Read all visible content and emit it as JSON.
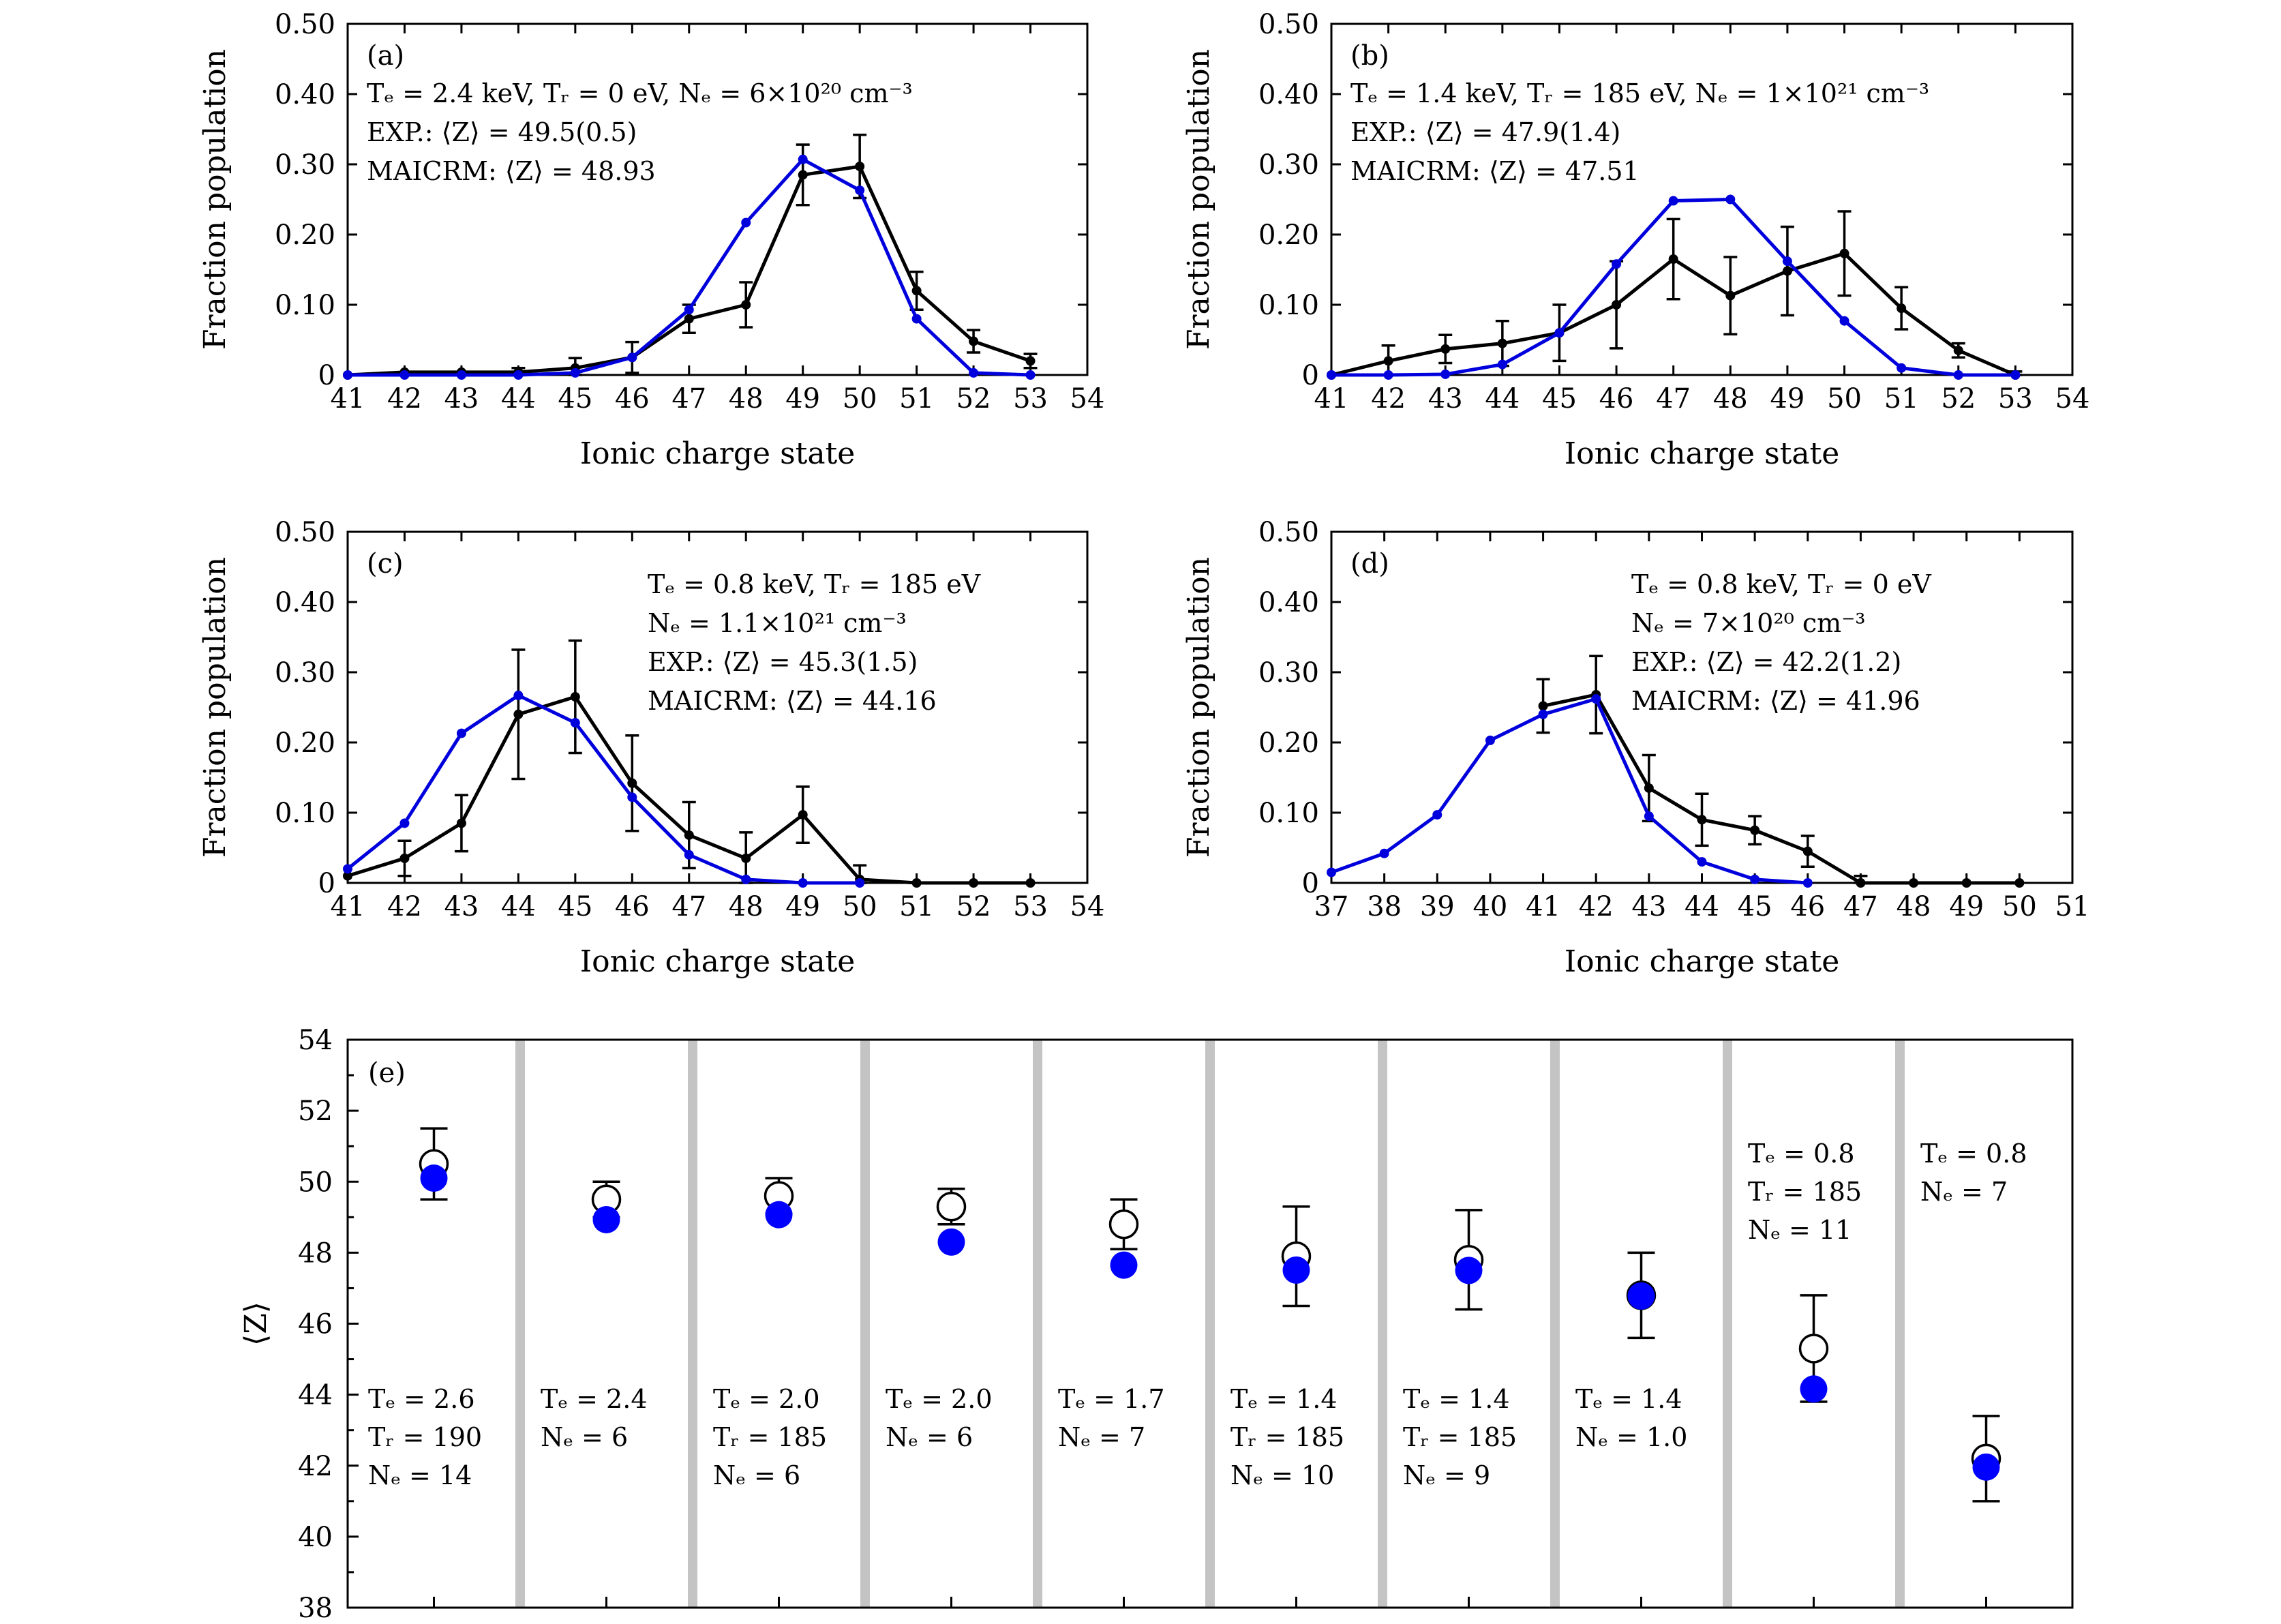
{
  "chart_data": [
    {
      "type": "line",
      "panel": "(a)",
      "xlabel": "Ionic charge state",
      "ylabel": "Fraction population",
      "xlim": [
        41,
        54
      ],
      "ylim": [
        0,
        0.5
      ],
      "xticks": [
        41,
        42,
        43,
        44,
        45,
        46,
        47,
        48,
        49,
        50,
        51,
        52,
        53,
        54
      ],
      "yticks": [
        "0",
        "0.10",
        "0.20",
        "0.30",
        "0.40",
        "0.50"
      ],
      "annotations": [
        "Tₑ = 2.4 keV, Tᵣ = 0 eV, Nₑ = 6×10²⁰ cm⁻³",
        "EXP.: ⟨Z⟩ = 49.5(0.5)",
        "MAICRM: ⟨Z⟩ = 48.93"
      ],
      "annotation_pos": "top-left",
      "series": [
        {
          "name": "EXP.",
          "color": "#000000",
          "x": [
            41,
            42,
            43,
            44,
            45,
            46,
            47,
            48,
            49,
            50,
            51,
            52,
            53
          ],
          "values": [
            0.0,
            0.004,
            0.004,
            0.004,
            0.01,
            0.025,
            0.08,
            0.1,
            0.285,
            0.297,
            0.12,
            0.048,
            0.02
          ],
          "errors": [
            0,
            0,
            0,
            0.006,
            0.014,
            0.022,
            0.02,
            0.032,
            0.043,
            0.045,
            0.027,
            0.016,
            0.01
          ]
        },
        {
          "name": "MAICRM",
          "color": "#0000dd",
          "x": [
            41,
            42,
            43,
            44,
            45,
            46,
            47,
            48,
            49,
            50,
            51,
            52,
            53
          ],
          "values": [
            0.0,
            0.0,
            0.0,
            0.0,
            0.003,
            0.025,
            0.093,
            0.217,
            0.307,
            0.263,
            0.08,
            0.003,
            0.0
          ]
        }
      ]
    },
    {
      "type": "line",
      "panel": "(b)",
      "xlabel": "Ionic charge state",
      "ylabel": "Fraction population",
      "xlim": [
        41,
        54
      ],
      "ylim": [
        0,
        0.5
      ],
      "xticks": [
        41,
        42,
        43,
        44,
        45,
        46,
        47,
        48,
        49,
        50,
        51,
        52,
        53,
        54
      ],
      "yticks": [
        "0",
        "0.10",
        "0.20",
        "0.30",
        "0.40",
        "0.50"
      ],
      "annotations": [
        "Tₑ = 1.4 keV, Tᵣ = 185 eV, Nₑ = 1×10²¹ cm⁻³",
        "EXP.: ⟨Z⟩ = 47.9(1.4)",
        "MAICRM: ⟨Z⟩ = 47.51"
      ],
      "annotation_pos": "top-left",
      "series": [
        {
          "name": "EXP.",
          "color": "#000000",
          "x": [
            41,
            42,
            43,
            44,
            45,
            46,
            47,
            48,
            49,
            50,
            51,
            52,
            53
          ],
          "values": [
            0.0,
            0.02,
            0.037,
            0.045,
            0.06,
            0.1,
            0.165,
            0.113,
            0.148,
            0.173,
            0.095,
            0.035,
            0.0
          ],
          "errors": [
            0,
            0.022,
            0.02,
            0.032,
            0.04,
            0.062,
            0.057,
            0.055,
            0.063,
            0.06,
            0.03,
            0.01,
            0.005
          ]
        },
        {
          "name": "MAICRM",
          "color": "#0000dd",
          "x": [
            41,
            42,
            43,
            44,
            45,
            46,
            47,
            48,
            49,
            50,
            51,
            52,
            53
          ],
          "values": [
            0.0,
            0.0,
            0.001,
            0.015,
            0.06,
            0.158,
            0.248,
            0.25,
            0.162,
            0.077,
            0.01,
            0.0,
            0.0
          ]
        }
      ]
    },
    {
      "type": "line",
      "panel": "(c)",
      "xlabel": "Ionic charge state",
      "ylabel": "Fraction population",
      "xlim": [
        41,
        54
      ],
      "ylim": [
        0,
        0.5
      ],
      "xticks": [
        41,
        42,
        43,
        44,
        45,
        46,
        47,
        48,
        49,
        50,
        51,
        52,
        53,
        54
      ],
      "yticks": [
        "0",
        "0.10",
        "0.20",
        "0.30",
        "0.40",
        "0.50"
      ],
      "annotations": [
        "Tₑ = 0.8 keV, Tᵣ = 185 eV",
        "Nₑ = 1.1×10²¹ cm⁻³",
        "EXP.: ⟨Z⟩ = 45.3(1.5)",
        "MAICRM: ⟨Z⟩ = 44.16"
      ],
      "annotation_pos": "top-right",
      "series": [
        {
          "name": "EXP.",
          "color": "#000000",
          "x": [
            41,
            42,
            43,
            44,
            45,
            46,
            47,
            48,
            49,
            50,
            51,
            52,
            53
          ],
          "values": [
            0.01,
            0.035,
            0.085,
            0.24,
            0.265,
            0.142,
            0.068,
            0.035,
            0.097,
            0.005,
            0.0,
            0.0,
            0.0
          ],
          "errors": [
            0,
            0.025,
            0.04,
            0.092,
            0.08,
            0.068,
            0.047,
            0.037,
            0.04,
            0.02,
            0,
            0,
            0
          ]
        },
        {
          "name": "MAICRM",
          "color": "#0000dd",
          "x": [
            41,
            42,
            43,
            44,
            45,
            46,
            47,
            48,
            49,
            50
          ],
          "values": [
            0.02,
            0.085,
            0.213,
            0.267,
            0.228,
            0.122,
            0.04,
            0.005,
            0.0,
            0.0
          ]
        }
      ]
    },
    {
      "type": "line",
      "panel": "(d)",
      "xlabel": "Ionic charge state",
      "ylabel": "Fraction population",
      "xlim": [
        37,
        51
      ],
      "ylim": [
        0,
        0.5
      ],
      "xticks": [
        37,
        38,
        39,
        40,
        41,
        42,
        43,
        44,
        45,
        46,
        47,
        48,
        49,
        50,
        51
      ],
      "yticks": [
        "0",
        "0.10",
        "0.20",
        "0.30",
        "0.40",
        "0.50"
      ],
      "annotations": [
        "Tₑ = 0.8 keV, Tᵣ = 0 eV",
        "Nₑ = 7×10²⁰ cm⁻³",
        "EXP.: ⟨Z⟩ = 42.2(1.2)",
        "MAICRM: ⟨Z⟩ = 41.96"
      ],
      "annotation_pos": "top-right",
      "series": [
        {
          "name": "EXP.",
          "color": "#000000",
          "x": [
            41,
            42,
            43,
            44,
            45,
            46,
            47,
            48,
            49,
            50
          ],
          "values": [
            0.252,
            0.268,
            0.135,
            0.09,
            0.075,
            0.045,
            0.0,
            0.0,
            0.0,
            0.0
          ],
          "errors": [
            0.038,
            0.055,
            0.047,
            0.037,
            0.02,
            0.022,
            0.01,
            0,
            0,
            0
          ]
        },
        {
          "name": "MAICRM",
          "color": "#0000dd",
          "x": [
            37,
            38,
            39,
            40,
            41,
            42,
            43,
            44,
            45,
            46
          ],
          "values": [
            0.015,
            0.042,
            0.097,
            0.203,
            0.24,
            0.262,
            0.095,
            0.03,
            0.005,
            0.0
          ]
        }
      ]
    },
    {
      "type": "scatter",
      "panel": "(e)",
      "ylabel": "⟨Z⟩",
      "ylim": [
        38,
        54
      ],
      "yticks": [
        38,
        40,
        42,
        44,
        46,
        48,
        50,
        52,
        54
      ],
      "exp_color": "#ffffff",
      "model_color": "#0000ff",
      "separator_color": "#c4c4c4",
      "groups": [
        {
          "exp": 50.5,
          "err": 1.0,
          "model": 50.1,
          "label": [
            "Tₑ = 2.6",
            "Tᵣ = 190",
            "Nₑ = 14"
          ],
          "label_pos": "bottom"
        },
        {
          "exp": 49.5,
          "err": 0.5,
          "model": 48.93,
          "label": [
            "Tₑ = 2.4",
            "Nₑ = 6"
          ],
          "label_pos": "bottom"
        },
        {
          "exp": 49.6,
          "err": 0.5,
          "model": 49.07,
          "label": [
            "Tₑ = 2.0",
            "Tᵣ = 185",
            "Nₑ = 6"
          ],
          "label_pos": "bottom"
        },
        {
          "exp": 49.3,
          "err": 0.5,
          "model": 48.3,
          "label": [
            "Tₑ = 2.0",
            "Nₑ = 6"
          ],
          "label_pos": "bottom"
        },
        {
          "exp": 48.8,
          "err": 0.7,
          "model": 47.65,
          "label": [
            "Tₑ = 1.7",
            "Nₑ = 7"
          ],
          "label_pos": "bottom"
        },
        {
          "exp": 47.9,
          "err": 1.4,
          "model": 47.51,
          "label": [
            "Tₑ = 1.4",
            "Tᵣ = 185",
            "Nₑ = 10"
          ],
          "label_pos": "bottom"
        },
        {
          "exp": 47.8,
          "err": 1.4,
          "model": 47.5,
          "label": [
            "Tₑ = 1.4",
            "Tᵣ = 185",
            "Nₑ = 9"
          ],
          "label_pos": "bottom"
        },
        {
          "exp": 46.8,
          "err": 1.2,
          "model": 46.78,
          "label": [
            "Tₑ = 1.4",
            "Nₑ = 1.0"
          ],
          "label_pos": "bottom"
        },
        {
          "exp": 45.3,
          "err": 1.5,
          "model": 44.16,
          "label": [
            "Tₑ = 0.8",
            "Tᵣ = 185",
            "Nₑ = 11"
          ],
          "label_pos": "top"
        },
        {
          "exp": 42.2,
          "err": 1.2,
          "model": 41.96,
          "label": [
            "Tₑ = 0.8",
            "Nₑ = 7"
          ],
          "label_pos": "top"
        }
      ]
    }
  ]
}
